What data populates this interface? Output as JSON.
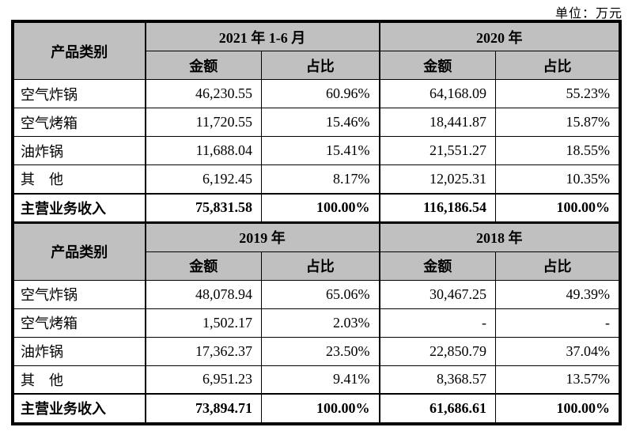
{
  "unit_label": "单位：万元",
  "table": {
    "labels": {
      "category": "产品类别",
      "amount": "金额",
      "ratio": "占比"
    },
    "header_bg": "#c0c0c0",
    "border_color": "#000000",
    "sections": [
      {
        "periods": [
          "2021 年 1-6 月",
          "2020 年"
        ],
        "rows": [
          {
            "label": "空气炸锅",
            "cells": [
              "46,230.55",
              "60.96%",
              "64,168.09",
              "55.23%"
            ],
            "bold": false
          },
          {
            "label": "空气烤箱",
            "cells": [
              "11,720.55",
              "15.46%",
              "18,441.87",
              "15.87%"
            ],
            "bold": false
          },
          {
            "label": "油炸锅",
            "cells": [
              "11,688.04",
              "15.41%",
              "21,551.27",
              "18.55%"
            ],
            "bold": false
          },
          {
            "label": "其　他",
            "cells": [
              "6,192.45",
              "8.17%",
              "12,025.31",
              "10.35%"
            ],
            "bold": false
          },
          {
            "label": "主营业务收入",
            "cells": [
              "75,831.58",
              "100.00%",
              "116,186.54",
              "100.00%"
            ],
            "bold": true
          }
        ]
      },
      {
        "periods": [
          "2019 年",
          "2018 年"
        ],
        "rows": [
          {
            "label": "空气炸锅",
            "cells": [
              "48,078.94",
              "65.06%",
              "30,467.25",
              "49.39%"
            ],
            "bold": false
          },
          {
            "label": "空气烤箱",
            "cells": [
              "1,502.17",
              "2.03%",
              "-",
              "-"
            ],
            "bold": false
          },
          {
            "label": "油炸锅",
            "cells": [
              "17,362.37",
              "23.50%",
              "22,850.79",
              "37.04%"
            ],
            "bold": false
          },
          {
            "label": "其　他",
            "cells": [
              "6,951.23",
              "9.41%",
              "8,368.57",
              "13.57%"
            ],
            "bold": false
          },
          {
            "label": "主营业务收入",
            "cells": [
              "73,894.71",
              "100.00%",
              "61,686.61",
              "100.00%"
            ],
            "bold": true
          }
        ]
      }
    ]
  }
}
